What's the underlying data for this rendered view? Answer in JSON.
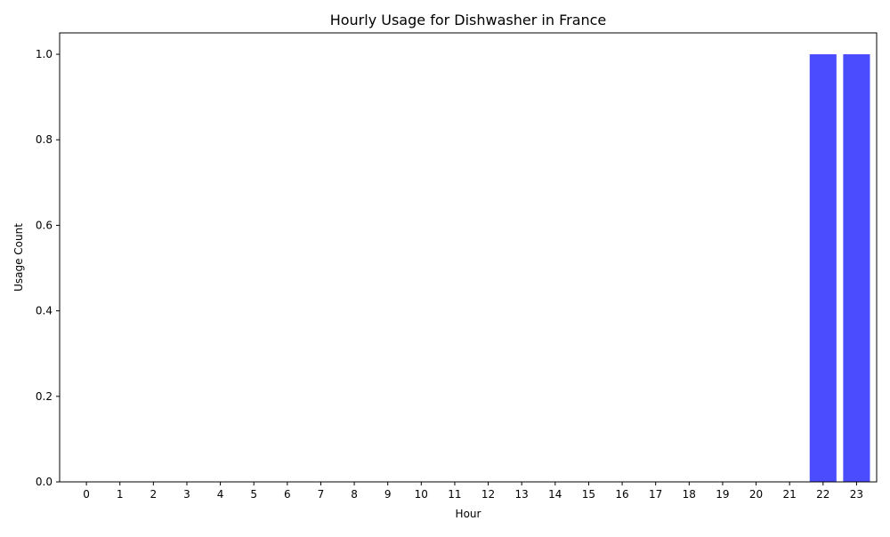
{
  "chart_data": {
    "type": "bar",
    "title": "Hourly Usage for Dishwasher in France",
    "xlabel": "Hour",
    "ylabel": "Usage Count",
    "categories": [
      "0",
      "1",
      "2",
      "3",
      "4",
      "5",
      "6",
      "7",
      "8",
      "9",
      "10",
      "11",
      "12",
      "13",
      "14",
      "15",
      "16",
      "17",
      "18",
      "19",
      "20",
      "21",
      "22",
      "23"
    ],
    "values": [
      0,
      0,
      0,
      0,
      0,
      0,
      0,
      0,
      0,
      0,
      0,
      0,
      0,
      0,
      0,
      0,
      0,
      0,
      0,
      0,
      0,
      0,
      1,
      1
    ],
    "ylim": [
      0,
      1.05
    ],
    "yticks": [
      "0.0",
      "0.2",
      "0.4",
      "0.6",
      "0.8",
      "1.0"
    ],
    "bar_color": "#4c4cff",
    "grid": false,
    "legend": "none"
  }
}
